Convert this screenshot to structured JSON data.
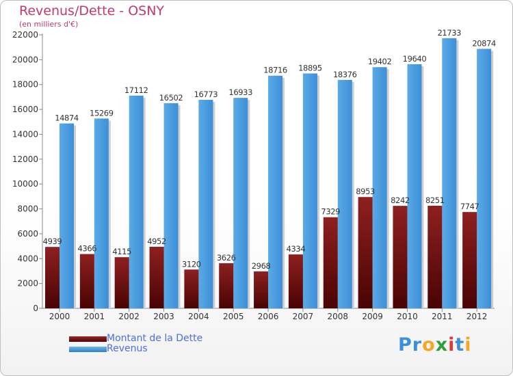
{
  "header": {
    "title": "Revenus/Dette - OSNY",
    "subtitle": "(en milliers d'€)"
  },
  "legend": {
    "items": [
      {
        "label": "Montant de la Dette",
        "color": "#7a1010"
      },
      {
        "label": "Revenus",
        "color": "#4a9ee0"
      }
    ]
  },
  "logo": {
    "text": "Proxiti",
    "letters": [
      "P",
      "r",
      "o",
      "x",
      "i",
      "t",
      "i"
    ],
    "colors": [
      "#3d8fd8",
      "#3d8fd8",
      "#f5a623",
      "#2e9e3e",
      "#d93a3a",
      "#3d8fd8",
      "#f5a623"
    ]
  },
  "chart_data": {
    "type": "bar",
    "title": "Revenus/Dette - OSNY",
    "ylabel": "(en milliers d'€)",
    "categories": [
      "2000",
      "2001",
      "2002",
      "2003",
      "2004",
      "2005",
      "2006",
      "2007",
      "2008",
      "2009",
      "2010",
      "2011",
      "2012"
    ],
    "series": [
      {
        "name": "Montant de la Dette",
        "color": "#7a1010",
        "values": [
          4939,
          4366,
          4115,
          4952,
          3120,
          3626,
          2968,
          4334,
          7329,
          8953,
          8242,
          8251,
          7747
        ],
        "labels": [
          "4939",
          "4366",
          "4115",
          "4952",
          "3120",
          "3626",
          "2968",
          "4334",
          "7329",
          "8953",
          "8242",
          "8251",
          "7747"
        ]
      },
      {
        "name": "Revenus",
        "color": "#4a9ee0",
        "values": [
          14874,
          15269,
          17112,
          16502,
          16773,
          16933,
          18716,
          18895,
          18376,
          19402,
          19640,
          21733,
          20874
        ],
        "labels": [
          "14874",
          "15269",
          "17112",
          "16502",
          "16773",
          "16933",
          "18716",
          "18895",
          "18376",
          "19402",
          "19640",
          "21733",
          "20874"
        ]
      }
    ],
    "yticks": [
      0,
      2000,
      4000,
      6000,
      8000,
      10000,
      12000,
      14000,
      16000,
      18000,
      20000,
      22000
    ],
    "ylim": [
      0,
      22000
    ],
    "grid": false,
    "legend_position": "bottom-left"
  }
}
